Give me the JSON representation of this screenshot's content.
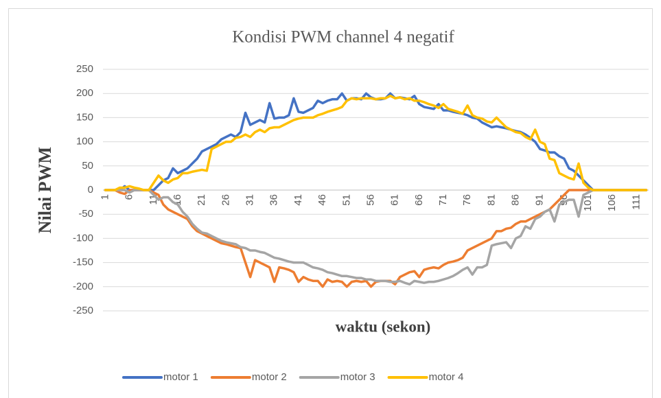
{
  "chart_data": {
    "type": "line",
    "title": "Kondisi PWM channel 4 negatif",
    "x_label": "waktu (sekon)",
    "y_label": "Nilai PWM",
    "categories": [
      1,
      null,
      null,
      null,
      null,
      6,
      null,
      null,
      null,
      null,
      11,
      null,
      null,
      null,
      null,
      16,
      null,
      null,
      null,
      null,
      21,
      null,
      null,
      null,
      null,
      26,
      null,
      null,
      null,
      null,
      31,
      null,
      null,
      null,
      null,
      36,
      null,
      null,
      null,
      null,
      41,
      null,
      null,
      null,
      null,
      46,
      null,
      null,
      null,
      null,
      51,
      null,
      null,
      null,
      null,
      56,
      null,
      null,
      null,
      null,
      61,
      null,
      null,
      null,
      null,
      66,
      null,
      null,
      null,
      null,
      71,
      null,
      null,
      null,
      null,
      76,
      null,
      null,
      null,
      null,
      81,
      null,
      null,
      null,
      null,
      86,
      null,
      null,
      null,
      null,
      91,
      null,
      null,
      null,
      null,
      96,
      null,
      null,
      null,
      null,
      101,
      null,
      null,
      null,
      null,
      106,
      null,
      null,
      null,
      null,
      111,
      null,
      null
    ],
    "series": [
      {
        "name": "motor 1",
        "color": "#4472C4",
        "values": [
          0,
          0,
          0,
          0,
          8,
          0,
          0,
          0,
          0,
          0,
          0,
          10,
          20,
          25,
          45,
          35,
          40,
          45,
          55,
          65,
          80,
          85,
          90,
          95,
          105,
          110,
          115,
          110,
          120,
          160,
          135,
          140,
          145,
          140,
          180,
          148,
          150,
          150,
          155,
          190,
          162,
          160,
          165,
          170,
          185,
          180,
          185,
          188,
          188,
          200,
          185,
          190,
          190,
          188,
          200,
          192,
          188,
          188,
          190,
          200,
          190,
          192,
          190,
          188,
          195,
          178,
          172,
          170,
          168,
          178,
          165,
          165,
          162,
          160,
          158,
          155,
          150,
          148,
          140,
          135,
          130,
          132,
          130,
          128,
          125,
          122,
          120,
          115,
          108,
          100,
          85,
          82,
          78,
          78,
          70,
          65,
          45,
          40,
          30,
          20,
          10,
          0,
          0,
          0,
          0,
          0,
          0,
          0,
          0,
          0,
          0,
          0,
          0
        ]
      },
      {
        "name": "motor 2",
        "color": "#ED7D31",
        "values": [
          0,
          0,
          0,
          -5,
          -8,
          0,
          0,
          0,
          0,
          0,
          -5,
          -10,
          -30,
          -40,
          -45,
          -50,
          -55,
          -60,
          -75,
          -85,
          -90,
          -95,
          -100,
          -105,
          -110,
          -112,
          -115,
          -118,
          -120,
          -150,
          -180,
          -145,
          -150,
          -155,
          -160,
          -190,
          -160,
          -162,
          -165,
          -170,
          -190,
          -180,
          -185,
          -188,
          -188,
          -200,
          -185,
          -190,
          -188,
          -190,
          -200,
          -190,
          -188,
          -190,
          -188,
          -200,
          -190,
          -188,
          -188,
          -188,
          -195,
          -180,
          -175,
          -170,
          -168,
          -180,
          -165,
          -162,
          -160,
          -162,
          -155,
          -150,
          -148,
          -145,
          -140,
          -125,
          -120,
          -115,
          -110,
          -105,
          -100,
          -85,
          -85,
          -80,
          -78,
          -70,
          -65,
          -65,
          -60,
          -55,
          -50,
          -45,
          -40,
          -30,
          -20,
          -10,
          0,
          0,
          0,
          0,
          0,
          0,
          0,
          0,
          0,
          0,
          0,
          0,
          0,
          0,
          0,
          0,
          0
        ]
      },
      {
        "name": "motor 3",
        "color": "#A5A5A5",
        "values": [
          0,
          0,
          0,
          0,
          0,
          -5,
          0,
          0,
          0,
          0,
          -10,
          -20,
          -15,
          -15,
          -25,
          -30,
          -45,
          -55,
          -70,
          -80,
          -88,
          -90,
          -95,
          -100,
          -105,
          -108,
          -110,
          -112,
          -118,
          -120,
          -125,
          -125,
          -128,
          -130,
          -135,
          -140,
          -142,
          -145,
          -148,
          -150,
          -150,
          -150,
          -155,
          -160,
          -162,
          -165,
          -170,
          -172,
          -175,
          -178,
          -178,
          -180,
          -182,
          -182,
          -185,
          -185,
          -188,
          -188,
          -188,
          -190,
          -190,
          -188,
          -192,
          -195,
          -188,
          -190,
          -192,
          -190,
          -190,
          -188,
          -185,
          -182,
          -178,
          -172,
          -165,
          -160,
          -175,
          -160,
          -160,
          -155,
          -115,
          -112,
          -110,
          -108,
          -120,
          -100,
          -95,
          -75,
          -80,
          -60,
          -55,
          -45,
          -40,
          -65,
          -30,
          -25,
          -20,
          -20,
          -55,
          -10,
          -5,
          0,
          0,
          0,
          0,
          0,
          0,
          0,
          0,
          0,
          0,
          0,
          0
        ]
      },
      {
        "name": "motor 4",
        "color": "#FFC000",
        "values": [
          0,
          0,
          0,
          5,
          5,
          8,
          5,
          3,
          0,
          0,
          15,
          30,
          20,
          15,
          22,
          25,
          35,
          35,
          38,
          40,
          42,
          40,
          85,
          90,
          95,
          100,
          100,
          108,
          110,
          115,
          110,
          120,
          125,
          120,
          128,
          130,
          130,
          135,
          140,
          145,
          148,
          150,
          150,
          150,
          155,
          158,
          162,
          165,
          168,
          172,
          185,
          190,
          188,
          190,
          190,
          190,
          188,
          190,
          190,
          195,
          190,
          192,
          188,
          190,
          185,
          185,
          182,
          178,
          175,
          170,
          178,
          168,
          165,
          162,
          158,
          175,
          155,
          150,
          148,
          142,
          140,
          150,
          140,
          130,
          125,
          120,
          118,
          110,
          105,
          125,
          100,
          95,
          65,
          62,
          35,
          30,
          25,
          22,
          55,
          15,
          5,
          0,
          0,
          0,
          0,
          0,
          0,
          0,
          0,
          0,
          0,
          0,
          0
        ]
      }
    ],
    "ylim": [
      -250,
      250
    ],
    "yticks": [
      -250,
      -200,
      -150,
      -100,
      -50,
      0,
      50,
      100,
      150,
      200,
      250
    ],
    "grid": true,
    "legend": "bottom"
  }
}
